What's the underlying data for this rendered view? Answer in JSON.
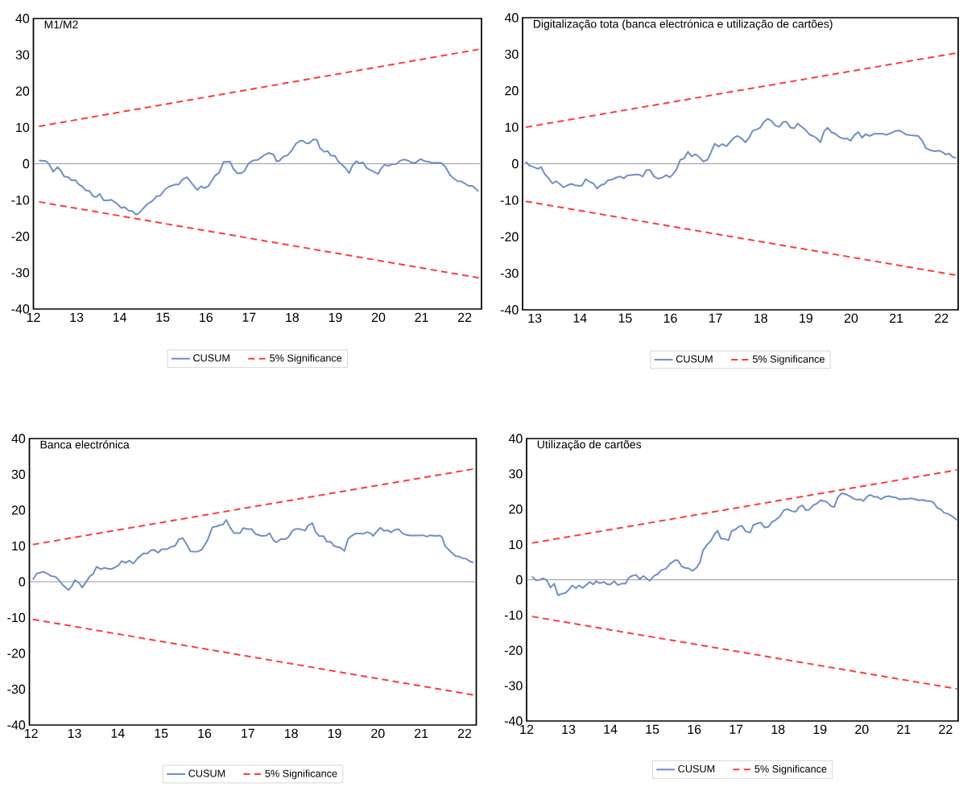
{
  "chart_data": [
    {
      "type": "line",
      "title": "M1/M2",
      "xlim": [
        12,
        22.39
      ],
      "ylim": [
        -40,
        40
      ],
      "xticks": [
        12,
        13,
        14,
        15,
        16,
        17,
        18,
        19,
        20,
        21,
        22
      ],
      "yticks": [
        -40,
        -30,
        -20,
        -10,
        0,
        10,
        20,
        30,
        40
      ],
      "legend": "bottom",
      "grid": false,
      "marker": "none",
      "ref_lines": [
        {
          "axis": "y",
          "value": 0,
          "color": "#808080"
        }
      ],
      "series": [
        {
          "name": "CUSUM",
          "color": "#6f8fc8",
          "line_style": "solid",
          "x": [
            12.13,
            12.29,
            12.36,
            12.46,
            12.56,
            12.64,
            12.71,
            12.81,
            12.89,
            12.97,
            13.06,
            13.13,
            13.21,
            13.3,
            13.38,
            13.45,
            13.54,
            13.63,
            13.73,
            13.8,
            13.94,
            14.04,
            14.11,
            14.21,
            14.29,
            14.38,
            14.44,
            14.63,
            14.77,
            14.86,
            14.94,
            15.05,
            15.14,
            15.29,
            15.37,
            15.46,
            15.56,
            15.68,
            15.8,
            15.89,
            15.96,
            16.06,
            16.21,
            16.31,
            16.41,
            16.56,
            16.64,
            16.73,
            16.82,
            16.89,
            16.99,
            17.09,
            17.21,
            17.34,
            17.46,
            17.57,
            17.64,
            17.71,
            17.8,
            17.89,
            18.0,
            18.09,
            18.18,
            18.25,
            18.32,
            18.39,
            18.49,
            18.57,
            18.64,
            18.74,
            18.82,
            18.9,
            18.99,
            19.07,
            19.14,
            19.23,
            19.32,
            19.41,
            19.49,
            19.56,
            19.64,
            19.73,
            19.82,
            19.89,
            19.99,
            20.07,
            20.14,
            20.24,
            20.32,
            20.41,
            20.5,
            20.59,
            20.68,
            20.77,
            20.86,
            20.98,
            21.07,
            21.18,
            21.25,
            21.36,
            21.46,
            21.55,
            21.66,
            21.75,
            21.84,
            21.93,
            22.0,
            22.09,
            22.18,
            22.32
          ],
          "values": [
            0.9,
            0.7,
            0,
            -2.2,
            -0.9,
            -2.0,
            -3.5,
            -3.7,
            -4.6,
            -4.5,
            -5.8,
            -6.2,
            -7.3,
            -7.5,
            -8.9,
            -9.2,
            -8.3,
            -10.1,
            -10.1,
            -9.9,
            -11.0,
            -12.2,
            -11.9,
            -12.9,
            -13.0,
            -14.0,
            -13.7,
            -11.2,
            -10.1,
            -8.9,
            -8.8,
            -7.1,
            -6.3,
            -5.7,
            -5.7,
            -4.3,
            -3.7,
            -5.5,
            -7.2,
            -6.2,
            -6.7,
            -6.1,
            -3.3,
            -2.4,
            0.5,
            0.6,
            -1.5,
            -2.6,
            -2.6,
            -2.0,
            0.1,
            0.9,
            1.1,
            2.3,
            3.0,
            2.5,
            0.6,
            0.9,
            2.0,
            2.3,
            3.8,
            5.6,
            6.3,
            6.3,
            5.7,
            5.6,
            6.7,
            6.6,
            4.4,
            3.3,
            3.5,
            2.2,
            2.2,
            0.6,
            -0.1,
            -1.1,
            -2.6,
            -0.2,
            0.7,
            0.1,
            0.4,
            -1.2,
            -1.8,
            -2.2,
            -2.8,
            -1.2,
            -0.3,
            -0.6,
            -0.1,
            -0.1,
            0.8,
            1.2,
            0.9,
            0.3,
            0.3,
            1.3,
            0.7,
            0.5,
            0.2,
            0.3,
            0.2,
            -0.8,
            -3.1,
            -4.1,
            -4.8,
            -4.9,
            -5.4,
            -6.1,
            -6.1,
            -7.6
          ]
        },
        {
          "name": "5% Significance",
          "color": "#ff3b3b",
          "line_style": "dashed",
          "x": [
            12.13,
            22.32
          ],
          "values": [
            10.3,
            31.5
          ]
        },
        {
          "color": "#ff3b3b",
          "line_style": "dashed",
          "x": [
            12.13,
            22.32
          ],
          "values": [
            -10.5,
            -31.4
          ]
        }
      ]
    },
    {
      "type": "line",
      "title": "Digitalização tota (banca electrónica e utilização de cartões)",
      "xlim": [
        12.73,
        22.37
      ],
      "ylim": [
        -40,
        40
      ],
      "xticks": [
        13,
        14,
        15,
        16,
        17,
        18,
        19,
        20,
        21,
        22
      ],
      "yticks": [
        -40,
        -30,
        -20,
        -10,
        0,
        10,
        20,
        30,
        40
      ],
      "legend": "bottom",
      "grid": false,
      "marker": "none",
      "ref_lines": [
        {
          "axis": "y",
          "value": 0,
          "color": "#808080"
        }
      ],
      "series": [
        {
          "name": "CUSUM",
          "color": "#6f8fc8",
          "line_style": "solid",
          "x": [
            12.8,
            12.88,
            12.98,
            13.07,
            13.14,
            13.22,
            13.3,
            13.39,
            13.47,
            13.55,
            13.64,
            13.72,
            13.81,
            13.89,
            13.97,
            14.04,
            14.13,
            14.22,
            14.3,
            14.38,
            14.47,
            14.55,
            14.62,
            14.72,
            14.8,
            14.89,
            14.97,
            15.05,
            15.14,
            15.23,
            15.31,
            15.39,
            15.47,
            15.55,
            15.64,
            15.73,
            15.82,
            15.91,
            15.99,
            16.05,
            16.14,
            16.22,
            16.3,
            16.39,
            16.47,
            16.56,
            16.64,
            16.73,
            16.82,
            16.9,
            16.98,
            17.07,
            17.15,
            17.24,
            17.32,
            17.41,
            17.49,
            17.58,
            17.66,
            17.74,
            17.82,
            17.91,
            17.99,
            18.08,
            18.16,
            18.24,
            18.32,
            18.41,
            18.49,
            18.57,
            18.66,
            18.74,
            18.82,
            18.91,
            18.99,
            19.08,
            19.16,
            19.24,
            19.32,
            19.4,
            19.48,
            19.57,
            19.65,
            19.74,
            19.82,
            19.91,
            19.99,
            20.07,
            20.16,
            20.24,
            20.32,
            20.41,
            20.51,
            20.61,
            20.7,
            20.78,
            20.88,
            20.99,
            21.07,
            21.22,
            21.32,
            21.49,
            21.58,
            21.66,
            21.76,
            21.85,
            21.95,
            22.03,
            22.1,
            22.17,
            22.25,
            22.32
          ],
          "values": [
            0.6,
            -0.5,
            -0.9,
            -1.4,
            -0.9,
            -2.8,
            -3.9,
            -5.4,
            -4.8,
            -5.5,
            -6.5,
            -5.9,
            -5.5,
            -5.9,
            -6.0,
            -6.0,
            -4.2,
            -5.0,
            -5.4,
            -6.8,
            -5.8,
            -5.5,
            -4.5,
            -4.3,
            -3.8,
            -3.5,
            -4.0,
            -3.2,
            -3.1,
            -3.0,
            -3.0,
            -3.5,
            -1.7,
            -1.7,
            -3.5,
            -4.1,
            -3.8,
            -3.1,
            -3.7,
            -3.0,
            -1.5,
            1.1,
            1.4,
            3.3,
            2.0,
            2.6,
            1.8,
            0.6,
            1.1,
            3.1,
            5.5,
            4.7,
            5.4,
            4.8,
            5.9,
            7.2,
            7.6,
            6.9,
            5.9,
            7.0,
            9.0,
            9.4,
            9.9,
            11.6,
            12.3,
            11.7,
            10.5,
            10.1,
            11.4,
            11.5,
            9.9,
            9.7,
            11.0,
            10.1,
            9.3,
            8.0,
            7.6,
            7.0,
            5.9,
            8.8,
            9.9,
            8.6,
            8.2,
            7.3,
            6.9,
            6.9,
            6.3,
            7.8,
            8.7,
            7.1,
            8.1,
            7.6,
            8.2,
            8.2,
            8.2,
            7.9,
            8.4,
            9.0,
            9.1,
            8.0,
            7.8,
            7.6,
            6.2,
            4.2,
            3.7,
            3.4,
            3.6,
            3.1,
            2.5,
            2.8,
            1.8,
            1.6
          ]
        },
        {
          "name": "5% Significance",
          "color": "#ff3b3b",
          "line_style": "dashed",
          "x": [
            12.8,
            22.32
          ],
          "values": [
            10.0,
            30.3
          ]
        },
        {
          "color": "#ff3b3b",
          "line_style": "dashed",
          "x": [
            12.8,
            22.32
          ],
          "values": [
            -10.3,
            -30.5
          ]
        }
      ]
    },
    {
      "type": "line",
      "title": "Banca electrónica",
      "xlim": [
        11.96,
        22.27
      ],
      "ylim": [
        -40,
        40
      ],
      "xticks": [
        12,
        13,
        14,
        15,
        16,
        17,
        18,
        19,
        20,
        21,
        22
      ],
      "yticks": [
        -40,
        -30,
        -20,
        -10,
        0,
        10,
        20,
        30,
        40
      ],
      "legend": "bottom",
      "grid": false,
      "marker": "none",
      "ref_lines": [
        {
          "axis": "y",
          "value": 0,
          "color": "#808080"
        }
      ],
      "series": [
        {
          "name": "CUSUM",
          "color": "#6f8fc8",
          "line_style": "solid",
          "x": [
            12.04,
            12.13,
            12.29,
            12.37,
            12.46,
            12.56,
            12.64,
            12.73,
            12.86,
            12.94,
            13.01,
            13.11,
            13.18,
            13.27,
            13.36,
            13.43,
            13.51,
            13.61,
            13.7,
            13.79,
            13.87,
            14.01,
            14.09,
            14.18,
            14.27,
            14.36,
            14.46,
            14.59,
            14.68,
            14.77,
            14.84,
            14.93,
            15.01,
            15.14,
            15.23,
            15.32,
            15.41,
            15.5,
            15.59,
            15.68,
            15.79,
            15.86,
            15.94,
            16.07,
            16.18,
            16.29,
            16.37,
            16.43,
            16.5,
            16.59,
            16.68,
            16.82,
            16.89,
            17.0,
            17.09,
            17.18,
            17.32,
            17.43,
            17.5,
            17.59,
            17.66,
            17.76,
            17.86,
            17.93,
            18.04,
            18.12,
            18.21,
            18.32,
            18.39,
            18.49,
            18.56,
            18.64,
            18.75,
            18.82,
            18.91,
            18.99,
            19.07,
            19.14,
            19.23,
            19.31,
            19.39,
            19.49,
            19.57,
            19.66,
            19.75,
            19.84,
            19.89,
            19.99,
            20.06,
            20.14,
            20.23,
            20.3,
            20.39,
            20.48,
            20.57,
            20.66,
            20.75,
            20.89,
            21.04,
            21.13,
            21.21,
            21.32,
            21.43,
            21.48,
            21.55,
            21.64,
            21.79,
            21.86,
            21.95,
            22.04,
            22.11,
            22.2
          ],
          "values": [
            0.6,
            2.3,
            2.8,
            2.3,
            1.6,
            1.4,
            0.5,
            -0.9,
            -2.3,
            -1.2,
            0.5,
            -0.4,
            -1.6,
            0.0,
            1.6,
            2.2,
            4.2,
            3.5,
            3.9,
            3.6,
            3.6,
            4.5,
            5.8,
            5.3,
            5.9,
            5.1,
            6.6,
            7.9,
            7.9,
            8.8,
            8.9,
            8.1,
            9.1,
            9.1,
            9.8,
            10.0,
            11.9,
            12.2,
            10.4,
            8.5,
            8.4,
            8.5,
            9.0,
            11.6,
            15.2,
            15.5,
            15.9,
            16.0,
            17.3,
            15.2,
            13.6,
            13.6,
            15.0,
            14.7,
            14.7,
            13.3,
            12.8,
            12.9,
            13.6,
            11.6,
            11.0,
            11.9,
            11.9,
            12.4,
            14.4,
            14.8,
            14.7,
            14.3,
            15.7,
            16.4,
            14.0,
            12.8,
            12.7,
            11.2,
            11.2,
            10.0,
            9.7,
            9.5,
            8.6,
            11.9,
            12.8,
            13.5,
            13.5,
            13.4,
            13.9,
            13.5,
            12.8,
            14.3,
            15.1,
            14.2,
            14.4,
            13.8,
            14.5,
            14.7,
            13.5,
            13.1,
            12.9,
            12.9,
            13.0,
            12.6,
            13.0,
            12.8,
            12.9,
            12.5,
            10.0,
            8.9,
            7.2,
            7.1,
            6.6,
            6.4,
            5.8,
            5.4
          ]
        },
        {
          "name": "5% Significance",
          "color": "#ff3b3b",
          "line_style": "dashed",
          "x": [
            12.04,
            22.2
          ],
          "values": [
            10.4,
            31.5
          ]
        },
        {
          "color": "#ff3b3b",
          "line_style": "dashed",
          "x": [
            12.04,
            22.2
          ],
          "values": [
            -10.5,
            -31.6
          ]
        }
      ]
    },
    {
      "type": "line",
      "title": "Utilização de cartões",
      "xlim": [
        12,
        22.3
      ],
      "ylim": [
        -40,
        40
      ],
      "xticks": [
        12,
        13,
        14,
        15,
        16,
        17,
        18,
        19,
        20,
        21,
        22
      ],
      "yticks": [
        -40,
        -30,
        -20,
        -10,
        0,
        10,
        20,
        30,
        40
      ],
      "legend": "bottom",
      "grid": false,
      "marker": "none",
      "ref_lines": [
        {
          "axis": "y",
          "value": 0,
          "color": "#808080"
        }
      ],
      "series": [
        {
          "name": "CUSUM",
          "color": "#6f8fc8",
          "line_style": "solid",
          "x": [
            12.13,
            12.23,
            12.32,
            12.39,
            12.48,
            12.57,
            12.66,
            12.75,
            12.86,
            12.93,
            13.0,
            13.09,
            13.18,
            13.25,
            13.34,
            13.43,
            13.51,
            13.59,
            13.66,
            13.75,
            13.84,
            13.93,
            14.0,
            14.09,
            14.18,
            14.27,
            14.36,
            14.43,
            14.51,
            14.61,
            14.7,
            14.79,
            14.86,
            14.94,
            15.04,
            15.13,
            15.21,
            15.32,
            15.43,
            15.54,
            15.61,
            15.7,
            15.8,
            15.86,
            15.96,
            16.06,
            16.14,
            16.21,
            16.31,
            16.39,
            16.49,
            16.56,
            16.64,
            16.73,
            16.82,
            16.89,
            16.99,
            17.07,
            17.14,
            17.23,
            17.34,
            17.41,
            17.51,
            17.59,
            17.68,
            17.77,
            17.86,
            17.94,
            18.04,
            18.14,
            18.23,
            18.34,
            18.43,
            18.5,
            18.59,
            18.66,
            18.75,
            18.84,
            18.93,
            19.01,
            19.11,
            19.18,
            19.27,
            19.34,
            19.43,
            19.52,
            19.62,
            19.71,
            19.8,
            19.87,
            19.96,
            20.04,
            20.11,
            20.2,
            20.29,
            20.37,
            20.46,
            20.55,
            20.64,
            20.73,
            20.82,
            20.89,
            21.0,
            21.09,
            21.18,
            21.27,
            21.36,
            21.46,
            21.56,
            21.64,
            21.71,
            21.8,
            21.89,
            21.96,
            22.07,
            22.18,
            22.27
          ],
          "values": [
            0.9,
            -0.2,
            0.0,
            0.4,
            -0.1,
            -2.2,
            -1.1,
            -4.4,
            -3.9,
            -3.7,
            -2.9,
            -1.6,
            -2.4,
            -1.6,
            -2.3,
            -1.4,
            -0.6,
            -1.3,
            -0.4,
            -1.0,
            -0.6,
            -1.3,
            -1.3,
            -0.4,
            -1.5,
            -1.1,
            -1.1,
            0.4,
            1.1,
            1.4,
            0.2,
            1.1,
            0.4,
            -0.3,
            1.1,
            1.6,
            2.7,
            3.1,
            4.6,
            5.5,
            5.5,
            3.8,
            3.3,
            3.3,
            2.5,
            3.5,
            5.0,
            8.3,
            10.0,
            10.9,
            13.0,
            13.9,
            11.6,
            11.6,
            11.2,
            13.8,
            14.3,
            15.1,
            15.3,
            13.7,
            13.4,
            15.5,
            16.0,
            16.2,
            14.8,
            15.0,
            16.4,
            16.9,
            17.9,
            19.7,
            20.0,
            19.4,
            19.3,
            20.6,
            21.1,
            19.7,
            19.9,
            21.1,
            21.6,
            22.5,
            22.3,
            21.9,
            20.8,
            20.6,
            23.4,
            24.5,
            24.2,
            23.7,
            23.0,
            22.7,
            22.8,
            22.3,
            23.4,
            24.1,
            23.5,
            23.5,
            22.8,
            23.5,
            23.7,
            23.4,
            23.3,
            22.8,
            22.9,
            22.9,
            23.1,
            22.8,
            22.5,
            22.6,
            22.3,
            22.3,
            21.9,
            20.4,
            19.9,
            19.0,
            18.6,
            17.8,
            16.9
          ]
        },
        {
          "name": "5% Significance",
          "color": "#ff3b3b",
          "line_style": "dashed",
          "x": [
            12.13,
            22.27
          ],
          "values": [
            10.4,
            31.1
          ]
        },
        {
          "color": "#ff3b3b",
          "line_style": "dashed",
          "x": [
            12.13,
            22.27
          ],
          "values": [
            -10.4,
            -30.9
          ]
        }
      ]
    }
  ]
}
